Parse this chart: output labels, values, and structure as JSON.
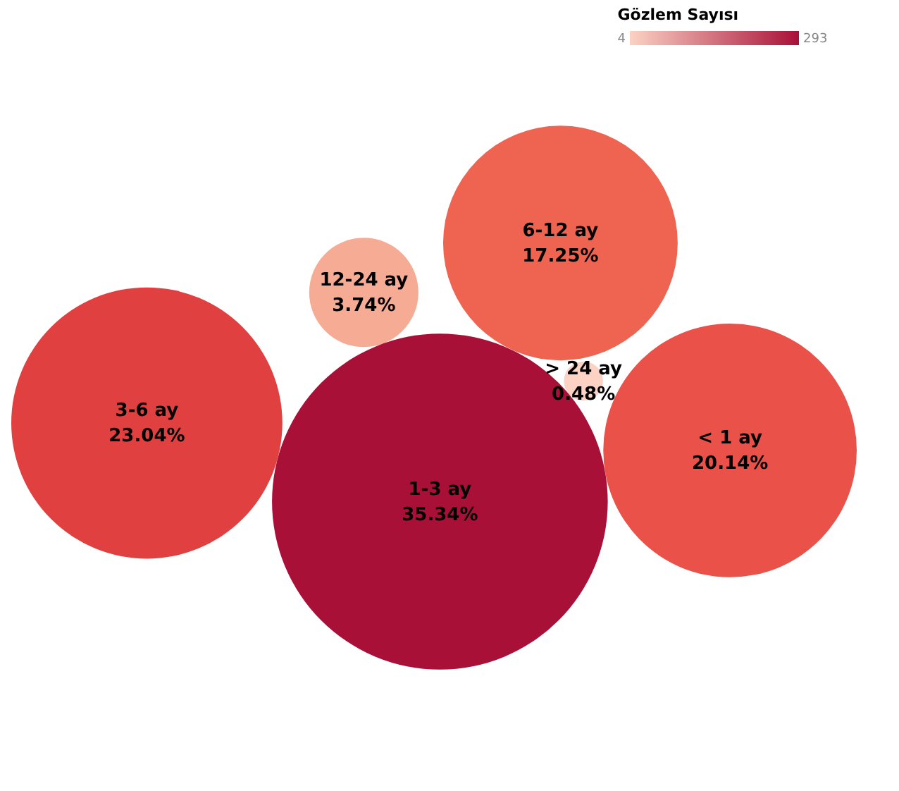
{
  "chart_data": {
    "type": "other",
    "categories": [
      "< 1 ay",
      "12-24 ay",
      "> 24 ay",
      "1-3 ay",
      "3-6 ay",
      "6-12 ay"
    ],
    "values": [
      20.14,
      3.74,
      0.48,
      35.34,
      23.04,
      17.25
    ],
    "value_labels": [
      "20.14%",
      "3.74%",
      "0.48%",
      "35.34%",
      "23.04%",
      "17.25%"
    ],
    "colors": [
      "#ea5149",
      "#f6ab94",
      "#fbd2c4",
      "#a91038",
      "#e0403f",
      "#ee6450"
    ],
    "clabel": "Gözlem Sayısı",
    "annotations": [
      "4",
      "293"
    ]
  }
}
